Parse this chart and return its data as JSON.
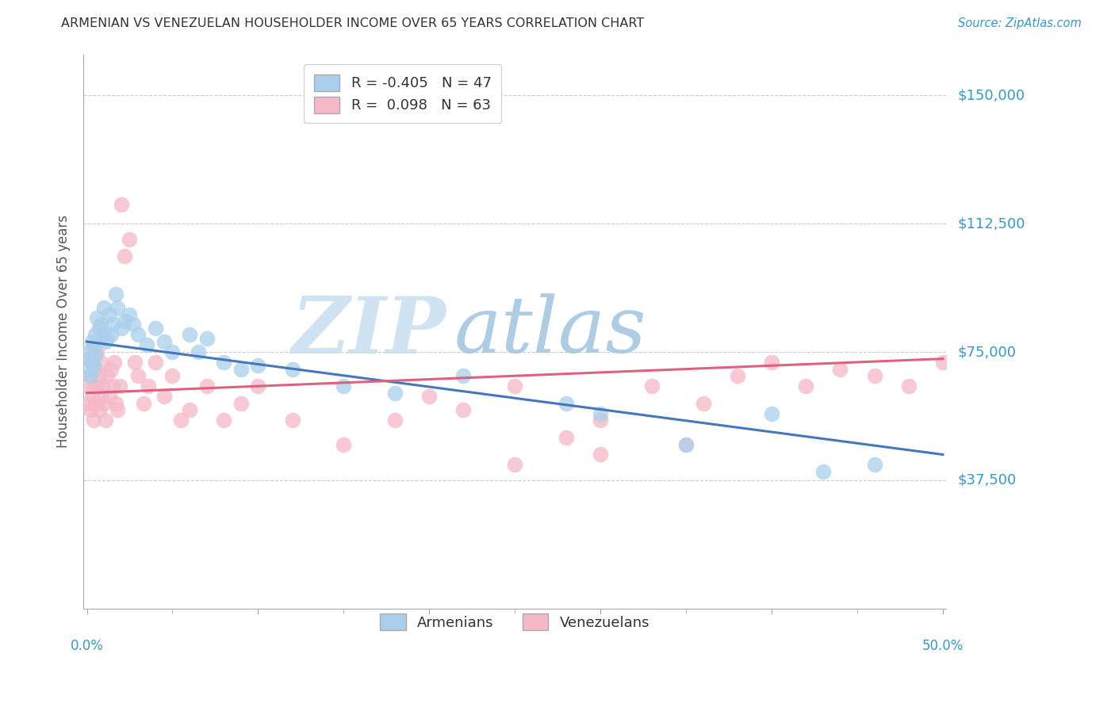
{
  "title": "ARMENIAN VS VENEZUELAN HOUSEHOLDER INCOME OVER 65 YEARS CORRELATION CHART",
  "source": "Source: ZipAtlas.com",
  "ylabel": "Householder Income Over 65 years",
  "ylabel_ticks": [
    "$37,500",
    "$75,000",
    "$112,500",
    "$150,000"
  ],
  "ylabel_vals": [
    37500,
    75000,
    112500,
    150000
  ],
  "ylim": [
    0,
    162000
  ],
  "xlim": [
    -0.002,
    0.502
  ],
  "armenian_R": -0.405,
  "armenian_N": 47,
  "venezuelan_R": 0.098,
  "venezuelan_N": 63,
  "armenian_color": "#aacfec",
  "venezuelan_color": "#f5b8c8",
  "armenian_line_color": "#4477bb",
  "venezuelan_line_color": "#e06080",
  "watermark_zip": "ZIP",
  "watermark_atlas": "atlas",
  "armenian_x": [
    0.001,
    0.001,
    0.002,
    0.002,
    0.003,
    0.003,
    0.004,
    0.004,
    0.005,
    0.005,
    0.006,
    0.007,
    0.008,
    0.009,
    0.01,
    0.011,
    0.012,
    0.013,
    0.014,
    0.015,
    0.017,
    0.018,
    0.02,
    0.022,
    0.025,
    0.027,
    0.03,
    0.035,
    0.04,
    0.045,
    0.05,
    0.06,
    0.065,
    0.07,
    0.08,
    0.09,
    0.1,
    0.12,
    0.15,
    0.18,
    0.22,
    0.28,
    0.3,
    0.35,
    0.4,
    0.43,
    0.46
  ],
  "armenian_y": [
    75000,
    70000,
    73000,
    68000,
    78000,
    72000,
    76000,
    71000,
    80000,
    74000,
    85000,
    82000,
    83000,
    80000,
    88000,
    78000,
    79000,
    86000,
    80000,
    83000,
    92000,
    88000,
    82000,
    84000,
    86000,
    83000,
    80000,
    77000,
    82000,
    78000,
    75000,
    80000,
    75000,
    79000,
    72000,
    70000,
    71000,
    70000,
    65000,
    63000,
    68000,
    60000,
    57000,
    48000,
    57000,
    40000,
    42000
  ],
  "venezuelan_x": [
    0.001,
    0.001,
    0.002,
    0.002,
    0.003,
    0.003,
    0.004,
    0.004,
    0.005,
    0.005,
    0.006,
    0.006,
    0.007,
    0.007,
    0.008,
    0.008,
    0.009,
    0.01,
    0.011,
    0.012,
    0.013,
    0.014,
    0.015,
    0.016,
    0.017,
    0.018,
    0.019,
    0.02,
    0.022,
    0.025,
    0.028,
    0.03,
    0.033,
    0.036,
    0.04,
    0.045,
    0.05,
    0.055,
    0.06,
    0.07,
    0.08,
    0.09,
    0.1,
    0.12,
    0.15,
    0.18,
    0.2,
    0.22,
    0.25,
    0.28,
    0.3,
    0.33,
    0.36,
    0.38,
    0.4,
    0.42,
    0.44,
    0.46,
    0.48,
    0.5,
    0.25,
    0.3,
    0.35
  ],
  "venezuelan_y": [
    65000,
    60000,
    68000,
    58000,
    72000,
    62000,
    65000,
    55000,
    70000,
    60000,
    75000,
    65000,
    68000,
    58000,
    72000,
    62000,
    65000,
    60000,
    55000,
    68000,
    62000,
    70000,
    65000,
    72000,
    60000,
    58000,
    65000,
    118000,
    103000,
    108000,
    72000,
    68000,
    60000,
    65000,
    72000,
    62000,
    68000,
    55000,
    58000,
    65000,
    55000,
    60000,
    65000,
    55000,
    48000,
    55000,
    62000,
    58000,
    65000,
    50000,
    55000,
    65000,
    60000,
    68000,
    72000,
    65000,
    70000,
    68000,
    65000,
    72000,
    42000,
    45000,
    48000
  ],
  "arm_line_x0": 0.0,
  "arm_line_x1": 0.5,
  "arm_line_y0": 78000,
  "arm_line_y1": 45000,
  "ven_line_x0": 0.0,
  "ven_line_x1": 0.5,
  "ven_line_y0": 63000,
  "ven_line_y1": 73000
}
